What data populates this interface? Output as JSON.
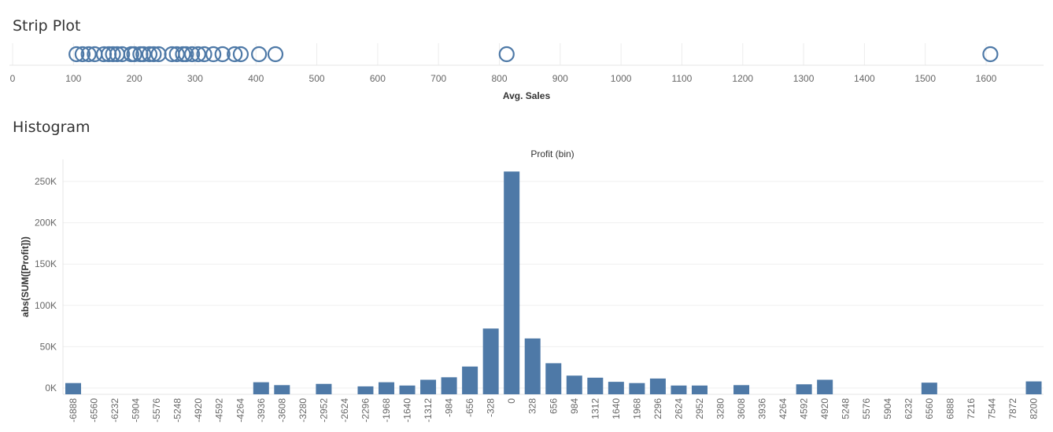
{
  "strip": {
    "title": "Strip Plot",
    "chart_data": {
      "type": "scatter",
      "title": "Strip Plot",
      "xlabel": "Avg. Sales",
      "xlim": [
        0,
        1700
      ],
      "xticks": [
        0,
        100,
        200,
        300,
        400,
        500,
        600,
        700,
        800,
        900,
        1000,
        1100,
        1200,
        1300,
        1400,
        1500,
        1600
      ],
      "values": [
        105,
        115,
        125,
        135,
        150,
        158,
        165,
        172,
        180,
        195,
        200,
        210,
        215,
        225,
        232,
        240,
        262,
        270,
        280,
        285,
        295,
        305,
        315,
        330,
        345,
        365,
        375,
        405,
        432,
        812,
        1607
      ]
    }
  },
  "histogram": {
    "title": "Histogram",
    "chart_data": {
      "type": "bar",
      "title": "Profit (bin)",
      "xlabel": "",
      "ylabel": "abs(SUM([Profit]))",
      "ylim": [
        0,
        260000
      ],
      "yticks": [
        0,
        50000,
        100000,
        150000,
        200000,
        250000
      ],
      "ytick_labels": [
        "0K",
        "50K",
        "100K",
        "150K",
        "200K",
        "250K"
      ],
      "categories": [
        "-6888",
        "-6560",
        "-6232",
        "-5904",
        "-5576",
        "-5248",
        "-4920",
        "-4592",
        "-4264",
        "-3936",
        "-3608",
        "-3280",
        "-2952",
        "-2624",
        "-2296",
        "-1968",
        "-1640",
        "-1312",
        "-984",
        "-656",
        "-328",
        "0",
        "328",
        "656",
        "984",
        "1312",
        "1640",
        "1968",
        "2296",
        "2624",
        "2952",
        "3280",
        "3608",
        "3936",
        "4264",
        "4592",
        "4920",
        "5248",
        "5576",
        "5904",
        "6232",
        "6560",
        "6888",
        "7216",
        "7544",
        "7872",
        "8200"
      ],
      "values": [
        6000,
        0,
        0,
        0,
        0,
        0,
        0,
        0,
        0,
        7000,
        3500,
        0,
        5000,
        0,
        2000,
        7000,
        3000,
        10000,
        13000,
        26000,
        72000,
        262000,
        60000,
        30000,
        15000,
        12500,
        7500,
        6000,
        11500,
        3000,
        3000,
        0,
        3500,
        0,
        0,
        4500,
        10000,
        0,
        0,
        0,
        0,
        6500,
        0,
        0,
        0,
        0,
        8000
      ]
    }
  }
}
